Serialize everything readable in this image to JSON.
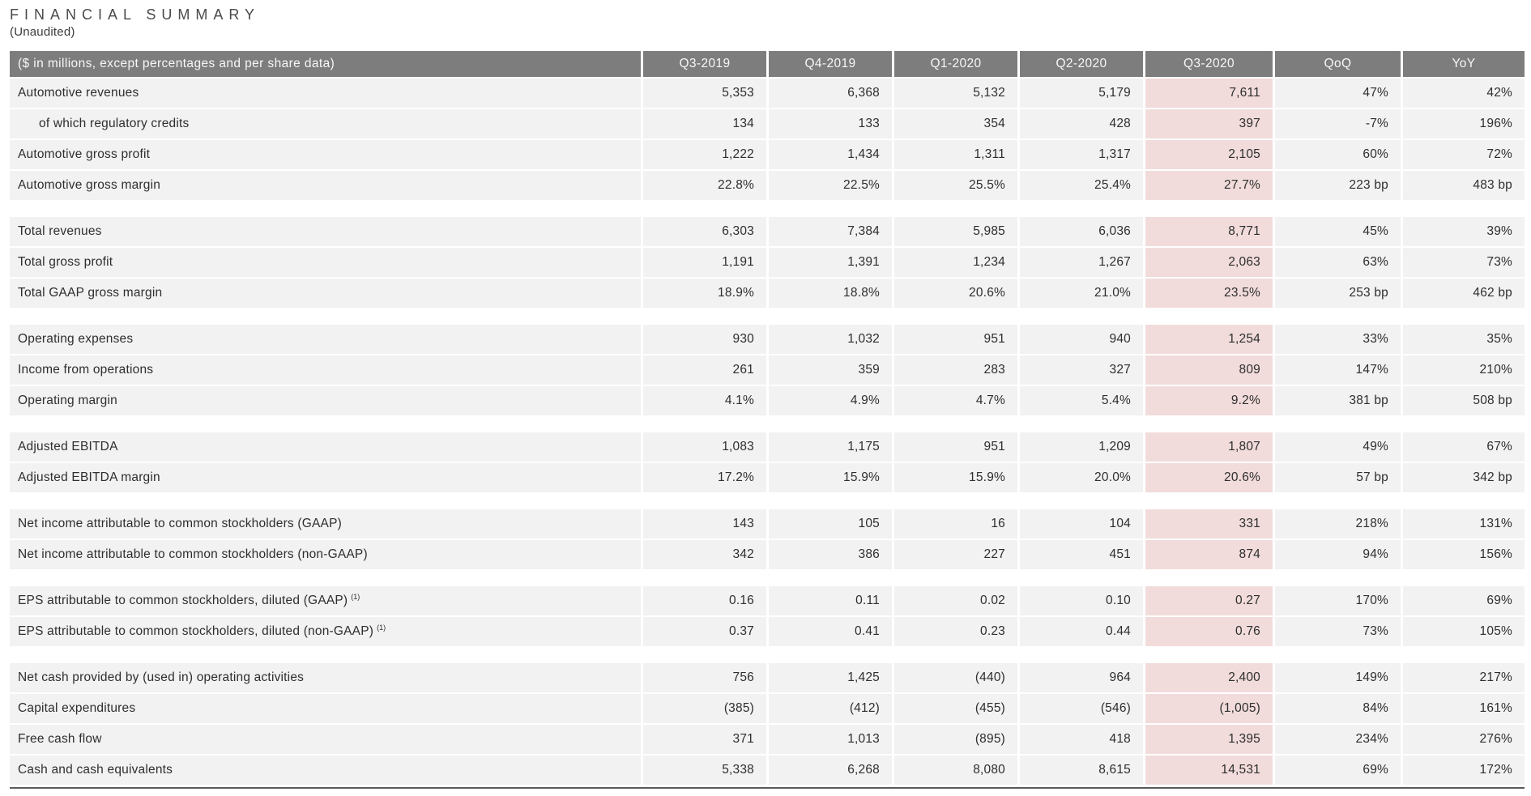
{
  "title": "FINANCIAL SUMMARY",
  "subtitle": "(Unaudited)",
  "colors": {
    "header_bg": "#7d7d7d",
    "row_bg": "#f2f2f2",
    "highlight_bg": "#f1dcdb",
    "bottom_rule": "#595959"
  },
  "table": {
    "header": {
      "label": "($ in millions, except percentages and per share data)",
      "columns": [
        "Q3-2019",
        "Q4-2019",
        "Q1-2020",
        "Q2-2020",
        "Q3-2020",
        "QoQ",
        "YoY"
      ]
    },
    "highlight_column": "Q3-2020",
    "highlight_column_index": 4,
    "sections": [
      {
        "rows": [
          {
            "label": "Automotive revenues",
            "values": [
              "5,353",
              "6,368",
              "5,132",
              "5,179",
              "7,611",
              "47%",
              "42%"
            ]
          },
          {
            "label": "of which regulatory credits",
            "indent": true,
            "values": [
              "134",
              "133",
              "354",
              "428",
              "397",
              "-7%",
              "196%"
            ]
          },
          {
            "label": "Automotive gross profit",
            "values": [
              "1,222",
              "1,434",
              "1,311",
              "1,317",
              "2,105",
              "60%",
              "72%"
            ]
          },
          {
            "label": "Automotive gross margin",
            "values": [
              "22.8%",
              "22.5%",
              "25.5%",
              "25.4%",
              "27.7%",
              "223 bp",
              "483 bp"
            ]
          }
        ]
      },
      {
        "rows": [
          {
            "label": "Total revenues",
            "values": [
              "6,303",
              "7,384",
              "5,985",
              "6,036",
              "8,771",
              "45%",
              "39%"
            ]
          },
          {
            "label": "Total gross profit",
            "values": [
              "1,191",
              "1,391",
              "1,234",
              "1,267",
              "2,063",
              "63%",
              "73%"
            ]
          },
          {
            "label": "Total GAAP gross margin",
            "values": [
              "18.9%",
              "18.8%",
              "20.6%",
              "21.0%",
              "23.5%",
              "253 bp",
              "462 bp"
            ]
          }
        ]
      },
      {
        "rows": [
          {
            "label": "Operating expenses",
            "values": [
              "930",
              "1,032",
              "951",
              "940",
              "1,254",
              "33%",
              "35%"
            ]
          },
          {
            "label": "Income from operations",
            "values": [
              "261",
              "359",
              "283",
              "327",
              "809",
              "147%",
              "210%"
            ]
          },
          {
            "label": "Operating margin",
            "values": [
              "4.1%",
              "4.9%",
              "4.7%",
              "5.4%",
              "9.2%",
              "381 bp",
              "508 bp"
            ]
          }
        ]
      },
      {
        "rows": [
          {
            "label": "Adjusted EBITDA",
            "values": [
              "1,083",
              "1,175",
              "951",
              "1,209",
              "1,807",
              "49%",
              "67%"
            ]
          },
          {
            "label": "Adjusted EBITDA margin",
            "values": [
              "17.2%",
              "15.9%",
              "15.9%",
              "20.0%",
              "20.6%",
              "57 bp",
              "342 bp"
            ]
          }
        ]
      },
      {
        "rows": [
          {
            "label": "Net income attributable to common stockholders (GAAP)",
            "values": [
              "143",
              "105",
              "16",
              "104",
              "331",
              "218%",
              "131%"
            ]
          },
          {
            "label": "Net income attributable to common stockholders (non-GAAP)",
            "values": [
              "342",
              "386",
              "227",
              "451",
              "874",
              "94%",
              "156%"
            ]
          }
        ]
      },
      {
        "rows": [
          {
            "label": "EPS attributable to common stockholders, diluted (GAAP)",
            "sup": "(1)",
            "values": [
              "0.16",
              "0.11",
              "0.02",
              "0.10",
              "0.27",
              "170%",
              "69%"
            ]
          },
          {
            "label": "EPS attributable to common stockholders, diluted (non-GAAP)",
            "sup": "(1)",
            "values": [
              "0.37",
              "0.41",
              "0.23",
              "0.44",
              "0.76",
              "73%",
              "105%"
            ]
          }
        ]
      },
      {
        "rows": [
          {
            "label": "Net cash provided by (used in) operating activities",
            "values": [
              "756",
              "1,425",
              "(440)",
              "964",
              "2,400",
              "149%",
              "217%"
            ]
          },
          {
            "label": "Capital expenditures",
            "values": [
              "(385)",
              "(412)",
              "(455)",
              "(546)",
              "(1,005)",
              "84%",
              "161%"
            ]
          },
          {
            "label": "Free cash flow",
            "values": [
              "371",
              "1,013",
              "(895)",
              "418",
              "1,395",
              "234%",
              "276%"
            ]
          },
          {
            "label": "Cash and cash equivalents",
            "values": [
              "5,338",
              "6,268",
              "8,080",
              "8,615",
              "14,531",
              "69%",
              "172%"
            ]
          }
        ]
      }
    ]
  }
}
